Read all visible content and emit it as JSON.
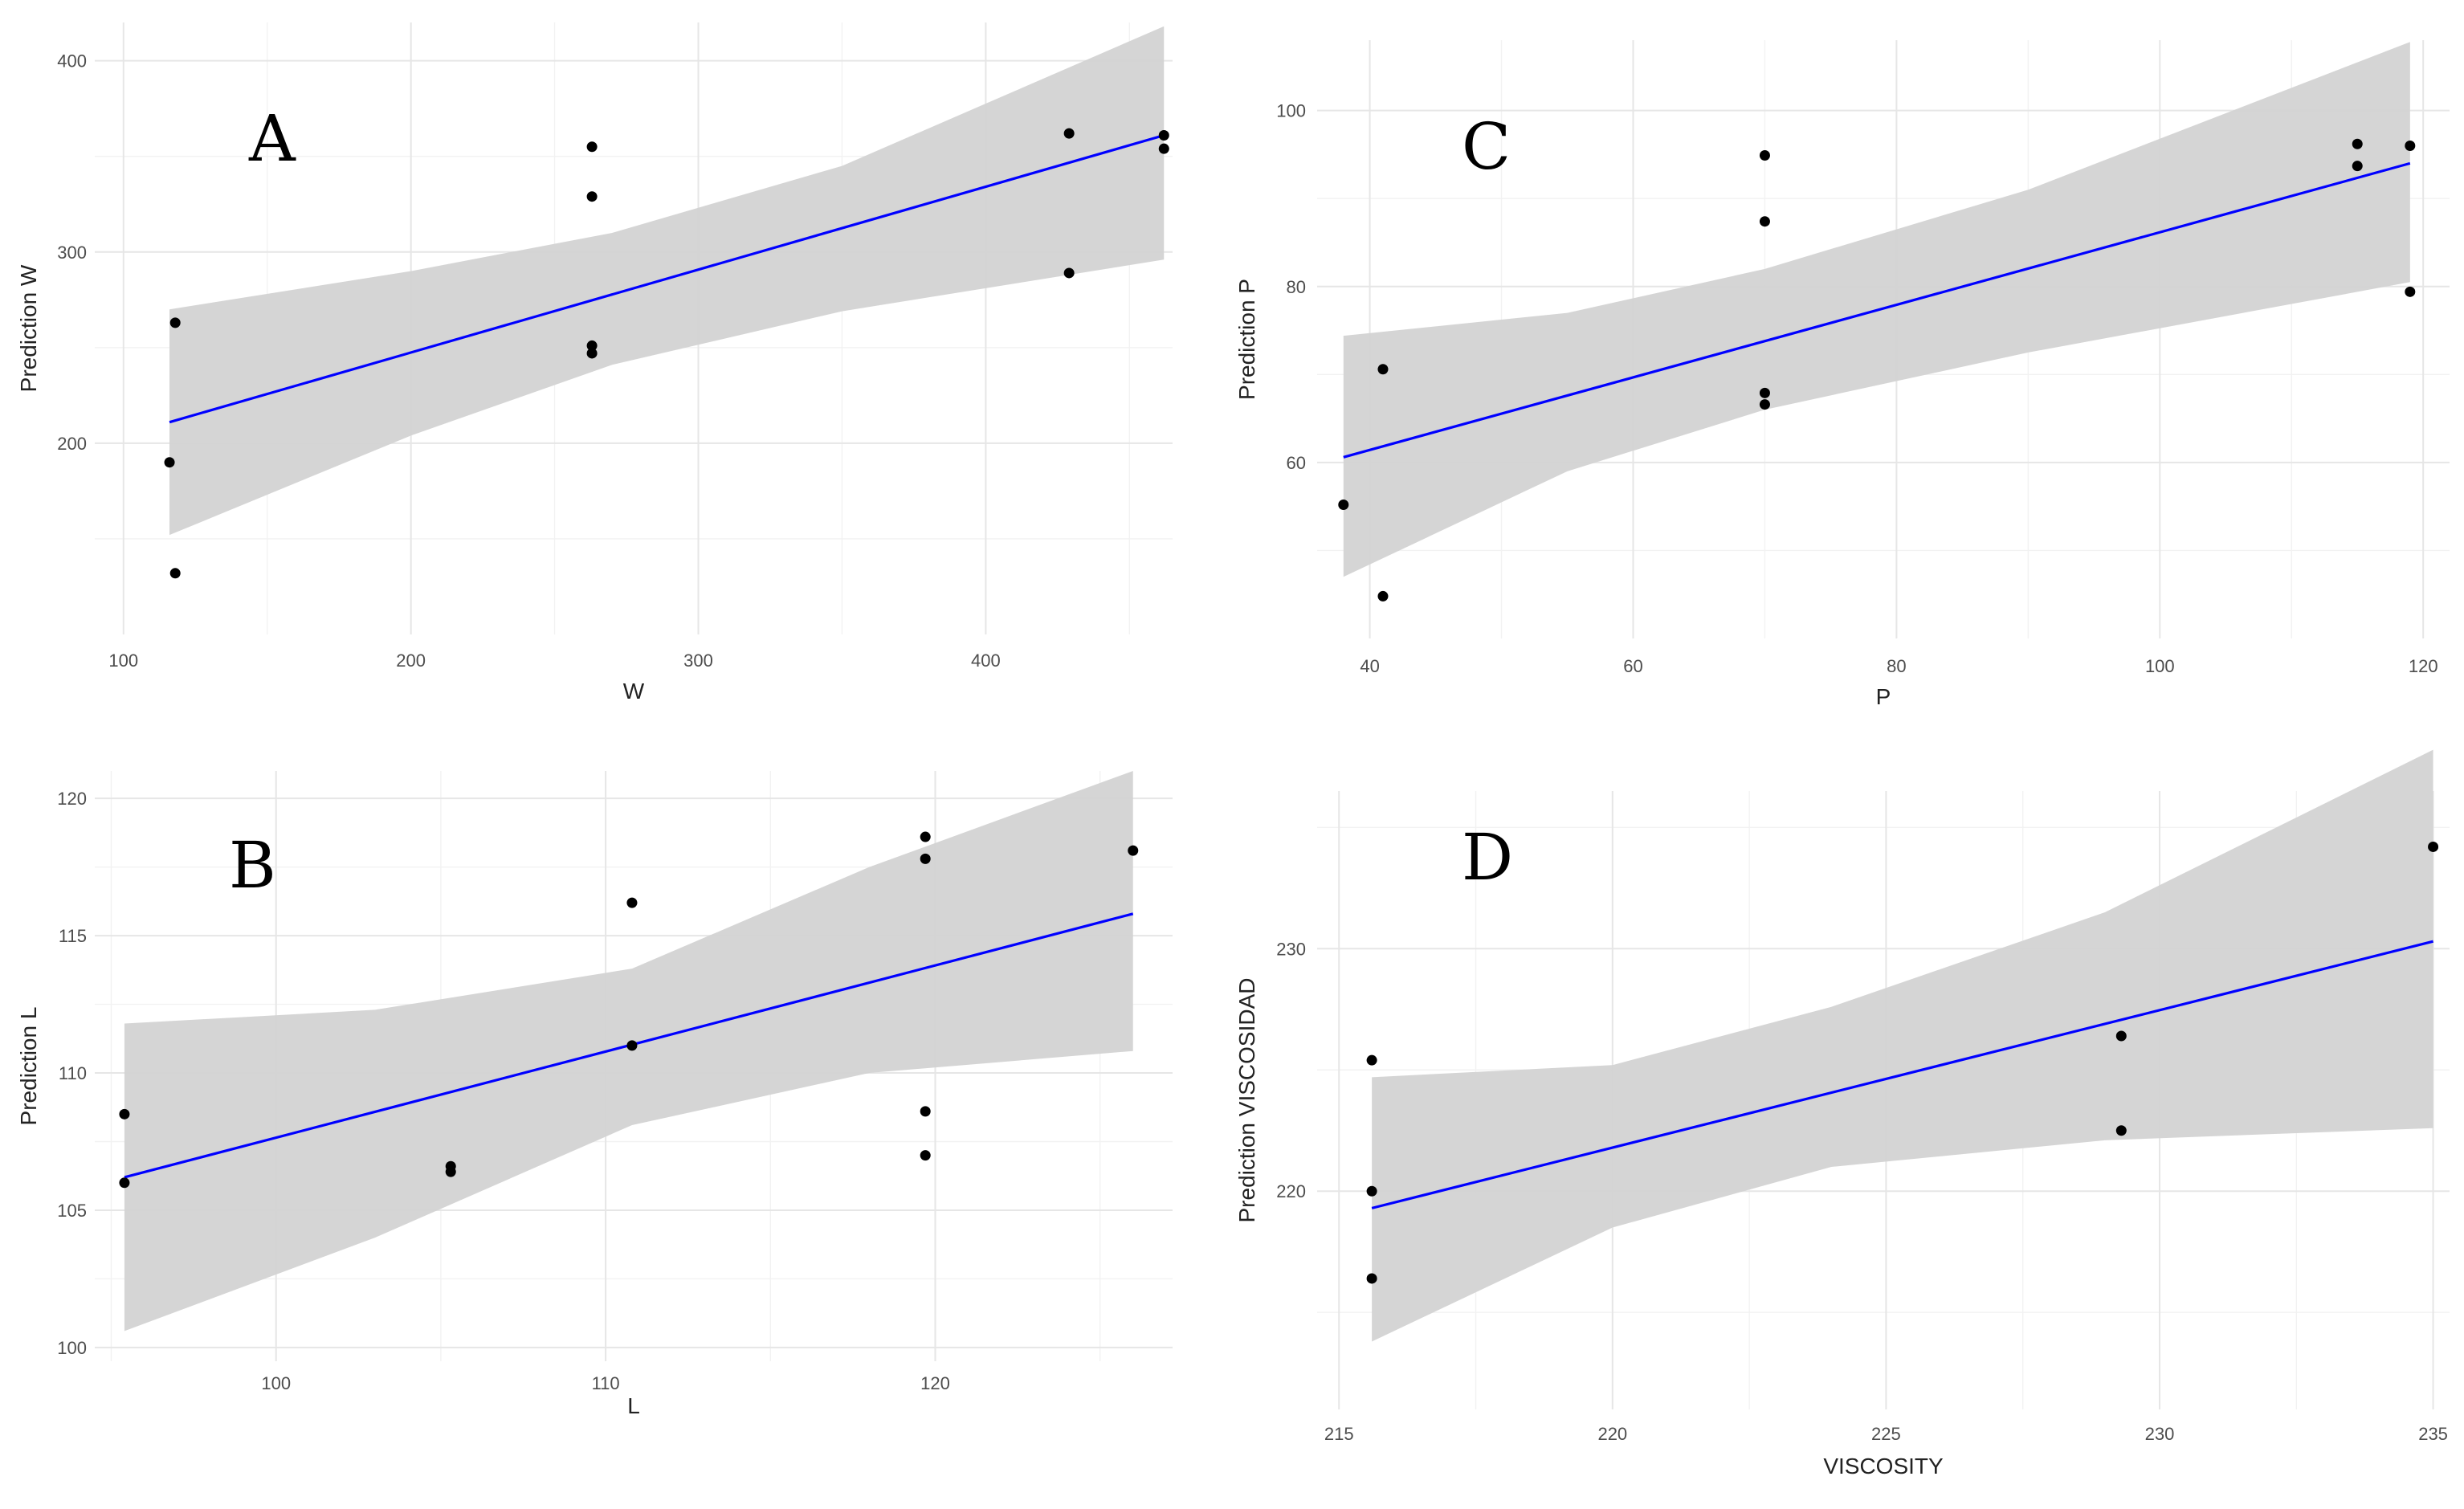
{
  "chart_data": [
    {
      "type": "scatter",
      "panel_letter": "A",
      "xlabel": "W",
      "ylabel": "Prediction W",
      "xlim": [
        90,
        465
      ],
      "ylim": [
        100,
        420
      ],
      "x_ticks": [
        100,
        200,
        300,
        400
      ],
      "y_ticks": [
        200,
        300,
        400
      ],
      "x": [
        116,
        118,
        118,
        263,
        263,
        263,
        263,
        429,
        429,
        462,
        462
      ],
      "y": [
        190,
        132,
        263,
        355,
        329,
        251,
        247,
        362,
        289,
        361,
        354
      ],
      "fit": {
        "x0": 116,
        "y0": 211,
        "x1": 462,
        "y1": 361
      },
      "ci_lower": [
        [
          116,
          152
        ],
        [
          200,
          204
        ],
        [
          270,
          241
        ],
        [
          350,
          269
        ],
        [
          462,
          296
        ]
      ],
      "ci_upper": [
        [
          116,
          270
        ],
        [
          200,
          290
        ],
        [
          270,
          310
        ],
        [
          350,
          345
        ],
        [
          462,
          418
        ]
      ],
      "colors": {
        "fit": "#0000ff",
        "band": "#d3d3d3",
        "point": "#000000"
      }
    },
    {
      "type": "scatter",
      "panel_letter": "B",
      "xlabel": "L",
      "ylabel": "Prediction L",
      "xlim": [
        94.5,
        127.2
      ],
      "ylim": [
        99.5,
        121
      ],
      "x_ticks": [
        100,
        110,
        120
      ],
      "y_ticks": [
        100,
        105,
        110,
        115,
        120
      ],
      "x": [
        95.4,
        95.4,
        105.3,
        105.3,
        110.8,
        110.8,
        119.7,
        119.7,
        119.7,
        119.7,
        126.0
      ],
      "y": [
        108.5,
        106.0,
        106.6,
        106.4,
        116.2,
        111.0,
        118.6,
        117.8,
        108.6,
        107.0,
        118.1
      ],
      "fit": {
        "x0": 95.4,
        "y0": 106.2,
        "x1": 126.0,
        "y1": 115.8
      },
      "ci_lower": [
        [
          95.4,
          100.6
        ],
        [
          103,
          104.0
        ],
        [
          110.8,
          108.1
        ],
        [
          118,
          110.0
        ],
        [
          126.0,
          110.8
        ]
      ],
      "ci_upper": [
        [
          95.4,
          111.8
        ],
        [
          103,
          112.3
        ],
        [
          110.8,
          113.8
        ],
        [
          118,
          117.5
        ],
        [
          126.0,
          121.0
        ]
      ],
      "colors": {
        "fit": "#0000ff",
        "band": "#d3d3d3",
        "point": "#000000"
      }
    },
    {
      "type": "scatter",
      "panel_letter": "C",
      "xlabel": "P",
      "ylabel": "Prediction P",
      "xlim": [
        36,
        122
      ],
      "ylim": [
        40,
        108
      ],
      "x_ticks": [
        40,
        60,
        80,
        100,
        120
      ],
      "y_ticks": [
        60,
        80,
        100
      ],
      "x": [
        38,
        41,
        41,
        70,
        70,
        70,
        70,
        115,
        115,
        119,
        119
      ],
      "y": [
        55.2,
        70.6,
        44.8,
        94.9,
        87.4,
        67.9,
        66.6,
        96.2,
        93.7,
        96.0,
        79.4
      ],
      "fit": {
        "x0": 38,
        "y0": 60.6,
        "x1": 119,
        "y1": 94.0
      },
      "ci_lower": [
        [
          38,
          47.0
        ],
        [
          55,
          59.0
        ],
        [
          70,
          66.0
        ],
        [
          90,
          72.5
        ],
        [
          119,
          80.5
        ]
      ],
      "ci_upper": [
        [
          38,
          74.4
        ],
        [
          55,
          77.0
        ],
        [
          70,
          82.0
        ],
        [
          90,
          91.0
        ],
        [
          119,
          107.8
        ]
      ],
      "colors": {
        "fit": "#0000ff",
        "band": "#d3d3d3",
        "point": "#000000"
      }
    },
    {
      "type": "scatter",
      "panel_letter": "D",
      "xlabel": "VISCOSITY",
      "ylabel": "Prediction VISCOSIDAD",
      "xlim": [
        214.6,
        235.3
      ],
      "ylim": [
        211,
        236.5
      ],
      "x_ticks": [
        215,
        220,
        225,
        230,
        235
      ],
      "y_ticks": [
        220,
        230
      ],
      "x": [
        215.6,
        215.6,
        215.6,
        229.3,
        229.3,
        235.0
      ],
      "y": [
        225.4,
        220.0,
        216.4,
        226.4,
        222.5,
        234.2
      ],
      "fit": {
        "x0": 215.6,
        "y0": 219.3,
        "x1": 235.0,
        "y1": 230.3
      },
      "ci_lower": [
        [
          215.6,
          213.8
        ],
        [
          220,
          218.5
        ],
        [
          224,
          221.0
        ],
        [
          229,
          222.1
        ],
        [
          235.0,
          222.6
        ]
      ],
      "ci_upper": [
        [
          215.6,
          224.7
        ],
        [
          220,
          225.2
        ],
        [
          224,
          227.6
        ],
        [
          229,
          231.5
        ],
        [
          235.0,
          238.2
        ]
      ],
      "colors": {
        "fit": "#0000ff",
        "band": "#d3d3d3",
        "point": "#000000"
      }
    }
  ]
}
